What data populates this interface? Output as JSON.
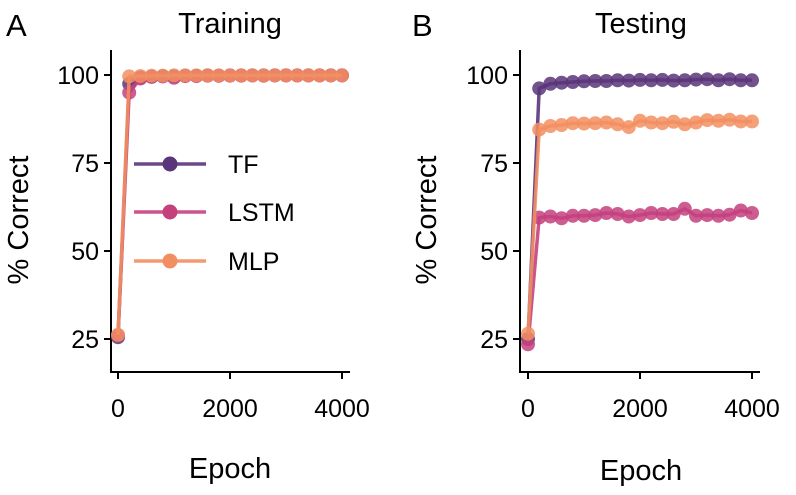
{
  "chart_data": [
    {
      "type": "line",
      "panel_label": "A",
      "title": "Training",
      "xlabel": "Epoch",
      "ylabel": "% Correct",
      "xlim": [
        -100,
        4100
      ],
      "ylim": [
        15,
        105
      ],
      "xticks": [
        0,
        2000,
        4000
      ],
      "xtick_labels": [
        "0",
        "2000",
        "4000"
      ],
      "yticks": [
        25,
        50,
        75,
        100
      ],
      "ytick_labels": [
        "25",
        "50",
        "75",
        "100"
      ],
      "legend": {
        "position": "center",
        "entries": [
          "TF",
          "LSTM",
          "MLP"
        ]
      },
      "x": [
        0,
        200,
        400,
        600,
        800,
        1000,
        1200,
        1400,
        1600,
        1800,
        2000,
        2200,
        2400,
        2600,
        2800,
        3000,
        3200,
        3400,
        3600,
        3800,
        4000
      ],
      "series": [
        {
          "name": "TF",
          "color": "#5b3579",
          "values": [
            25.5,
            97.5,
            99.3,
            99.5,
            99.7,
            99.6,
            99.8,
            99.8,
            99.9,
            99.8,
            99.9,
            99.9,
            99.9,
            99.9,
            99.9,
            99.9,
            99.9,
            99.9,
            99.9,
            99.9,
            99.9
          ]
        },
        {
          "name": "LSTM",
          "color": "#c4417e",
          "values": [
            26.0,
            95.0,
            99.0,
            99.5,
            99.6,
            99.2,
            99.7,
            99.7,
            99.8,
            99.8,
            99.8,
            99.8,
            99.9,
            99.8,
            99.9,
            99.9,
            99.9,
            99.9,
            99.9,
            99.9,
            99.9
          ]
        },
        {
          "name": "MLP",
          "color": "#f28f62",
          "values": [
            26.2,
            99.6,
            99.7,
            99.8,
            99.8,
            99.9,
            99.9,
            99.9,
            99.9,
            99.9,
            99.9,
            99.9,
            99.9,
            99.9,
            99.9,
            99.9,
            99.9,
            99.9,
            99.9,
            99.9,
            99.9
          ]
        }
      ]
    },
    {
      "type": "line",
      "panel_label": "B",
      "title": "Testing",
      "xlabel": "Epoch",
      "ylabel": "% Correct",
      "xlim": [
        -100,
        4100
      ],
      "ylim": [
        15,
        105
      ],
      "xticks": [
        0,
        2000,
        4000
      ],
      "xtick_labels": [
        "0",
        "2000",
        "4000"
      ],
      "yticks": [
        25,
        50,
        75,
        100
      ],
      "ytick_labels": [
        "25",
        "50",
        "75",
        "100"
      ],
      "x": [
        0,
        200,
        400,
        600,
        800,
        1000,
        1200,
        1400,
        1600,
        1800,
        2000,
        2200,
        2400,
        2600,
        2800,
        3000,
        3200,
        3400,
        3600,
        3800,
        4000
      ],
      "series": [
        {
          "name": "TF",
          "color": "#5b3579",
          "values": [
            25.0,
            96.2,
            97.5,
            97.8,
            98.0,
            98.2,
            98.3,
            98.3,
            98.5,
            98.4,
            98.6,
            98.5,
            98.6,
            98.4,
            98.5,
            98.7,
            98.8,
            98.5,
            98.8,
            98.5,
            98.5
          ]
        },
        {
          "name": "LSTM",
          "color": "#c4417e",
          "values": [
            23.5,
            59.5,
            59.8,
            59.3,
            60.0,
            60.0,
            60.2,
            60.8,
            60.5,
            59.8,
            60.2,
            60.8,
            60.5,
            60.5,
            62.0,
            60.0,
            60.2,
            60.0,
            60.3,
            61.5,
            60.8
          ]
        },
        {
          "name": "MLP",
          "color": "#f28f62",
          "values": [
            26.5,
            84.5,
            85.5,
            85.8,
            86.3,
            86.2,
            86.3,
            86.5,
            86.0,
            85.2,
            87.0,
            86.5,
            86.3,
            86.7,
            86.0,
            86.5,
            87.2,
            87.0,
            87.3,
            86.8,
            86.8
          ]
        }
      ]
    }
  ]
}
